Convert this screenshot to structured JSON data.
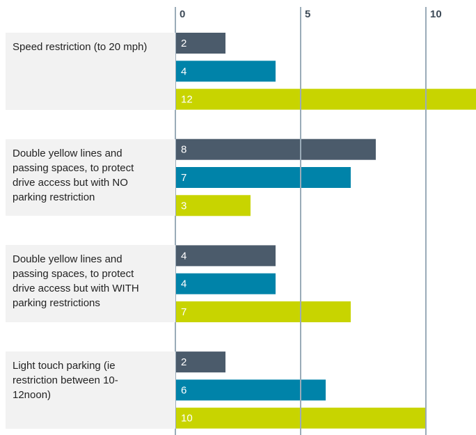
{
  "chart_data": {
    "type": "bar",
    "orientation": "horizontal",
    "categories": [
      "Speed restriction (to 20 mph)",
      "Double yellow lines and passing spaces, to protect drive access but with NO parking restriction",
      "Double yellow lines and passing spaces, to protect drive access but with WITH parking restrictions",
      "Light touch parking (ie restriction between 10-12noon)"
    ],
    "series": [
      {
        "color": "#4b5b6b",
        "values": [
          2,
          8,
          4,
          2
        ]
      },
      {
        "color": "#0083a9",
        "values": [
          4,
          7,
          4,
          6
        ]
      },
      {
        "color": "#c8d400",
        "values": [
          12,
          3,
          7,
          10
        ]
      }
    ],
    "xlim": [
      0,
      12
    ],
    "xticks": [
      0,
      5,
      10
    ],
    "grid": true
  }
}
